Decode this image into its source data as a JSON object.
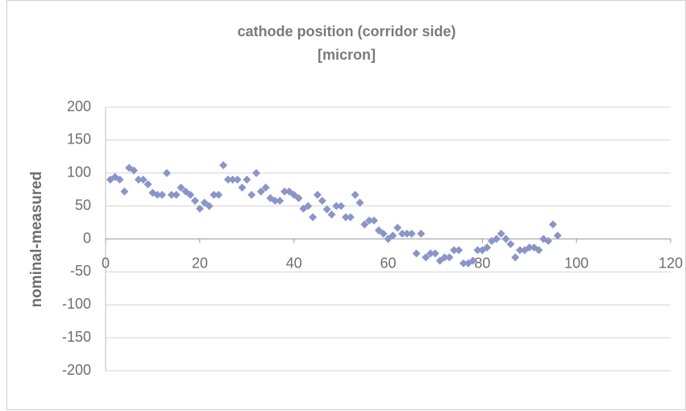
{
  "chart_data": {
    "type": "scatter",
    "title": [
      "cathode position (corridor side)",
      "[micron]"
    ],
    "ylabel": "nominal-measured",
    "color": "#8a95c8",
    "x": [
      1,
      2,
      3,
      4,
      5,
      6,
      7,
      8,
      9,
      10,
      11,
      12,
      13,
      14,
      15,
      16,
      17,
      18,
      19,
      20,
      21,
      22,
      23,
      24,
      25,
      26,
      27,
      28,
      29,
      30,
      31,
      32,
      33,
      34,
      35,
      36,
      37,
      38,
      39,
      40,
      41,
      42,
      43,
      44,
      45,
      46,
      47,
      48,
      49,
      50,
      51,
      52,
      53,
      54,
      55,
      56,
      57,
      58,
      59,
      60,
      61,
      62,
      63,
      64,
      65,
      66,
      67,
      68,
      69,
      70,
      71,
      72,
      73,
      74,
      75,
      76,
      77,
      78,
      79,
      80,
      81,
      82,
      83,
      84,
      85,
      86,
      87,
      88,
      89,
      90,
      91,
      92,
      93,
      94,
      95,
      96
    ],
    "values": [
      90,
      94,
      90,
      72,
      108,
      104,
      90,
      90,
      83,
      70,
      67,
      67,
      100,
      67,
      67,
      78,
      72,
      67,
      58,
      46,
      55,
      50,
      67,
      67,
      112,
      90,
      90,
      90,
      78,
      90,
      67,
      100,
      72,
      78,
      62,
      58,
      58,
      72,
      72,
      67,
      62,
      46,
      50,
      33,
      67,
      58,
      45,
      37,
      50,
      50,
      33,
      33,
      67,
      55,
      22,
      28,
      28,
      13,
      8,
      0,
      5,
      17,
      8,
      8,
      8,
      -22,
      8,
      -28,
      -22,
      -22,
      -33,
      -28,
      -28,
      -17,
      -17,
      -37,
      -37,
      -33,
      -17,
      -17,
      -13,
      -3,
      0,
      8,
      0,
      -8,
      -28,
      -17,
      -17,
      -13,
      -13,
      -17,
      0,
      -3,
      22,
      5
    ],
    "xlim": [
      0,
      120
    ],
    "xticks": [
      0,
      20,
      40,
      60,
      80,
      100,
      120
    ],
    "ylim": [
      -200,
      200
    ],
    "yticks": [
      -200,
      -150,
      -100,
      -50,
      0,
      50,
      100,
      150,
      200
    ],
    "grid": true
  }
}
